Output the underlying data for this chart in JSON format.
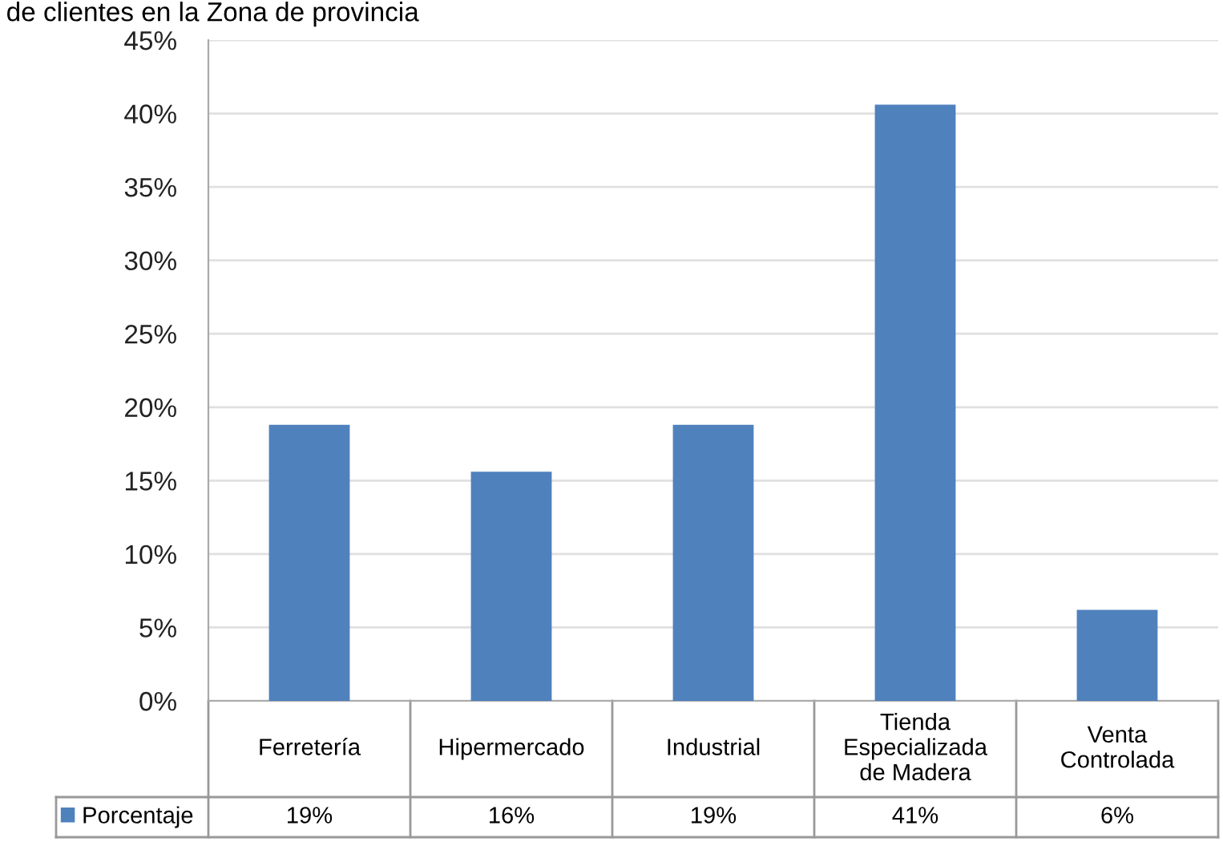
{
  "chart_data": {
    "type": "bar",
    "title": "de clientes en la Zona de provincia",
    "categories": [
      "Ferretería",
      "Hipermercado",
      "Industrial",
      "Tienda\nEspecializada\nde Madera",
      "Venta\nControlada"
    ],
    "series": [
      {
        "name": "Porcentaje",
        "color": "#4f81bd",
        "values": [
          18.8,
          15.6,
          18.8,
          40.6,
          6.2
        ],
        "value_labels": [
          "19%",
          "16%",
          "19%",
          "41%",
          "6%"
        ]
      }
    ],
    "ylim": [
      0,
      45
    ],
    "yticks": [
      {
        "value": 0,
        "label": "0%"
      },
      {
        "value": 5,
        "label": "5%"
      },
      {
        "value": 10,
        "label": "10%"
      },
      {
        "value": 15,
        "label": "15%"
      },
      {
        "value": 20,
        "label": "20%"
      },
      {
        "value": 25,
        "label": "25%"
      },
      {
        "value": 30,
        "label": "30%"
      },
      {
        "value": 35,
        "label": "35%"
      },
      {
        "value": 40,
        "label": "40%"
      },
      {
        "value": 45,
        "label": "45%"
      }
    ],
    "grid": "y",
    "legend": "bottom left"
  }
}
